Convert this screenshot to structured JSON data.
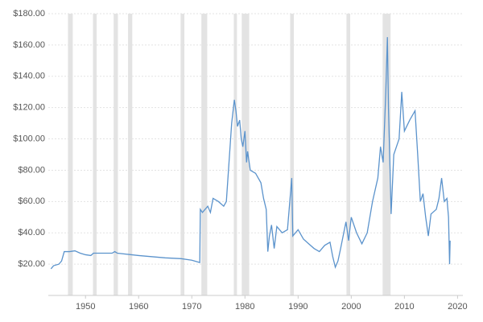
{
  "chart_data": {
    "type": "line",
    "x": [
      1943.5,
      1944,
      1945,
      1945.5,
      1946,
      1947,
      1948,
      1949,
      1950,
      1951,
      1951.5,
      1955,
      1955.5,
      1956,
      1960,
      1965,
      1968,
      1970,
      1971.5,
      1971.6,
      1972,
      1973,
      1973.5,
      1974,
      1975,
      1976,
      1976.5,
      1977,
      1977.5,
      1978,
      1978.3,
      1978.6,
      1979,
      1979.3,
      1979.6,
      1980,
      1980.3,
      1980.5,
      1981,
      1982,
      1983,
      1983.5,
      1984,
      1984.3,
      1984.6,
      1985,
      1985.5,
      1986,
      1987,
      1988,
      1988.8,
      1989,
      1990,
      1991,
      1992,
      1993,
      1994,
      1995,
      1996,
      1996.5,
      1997,
      1997.5,
      1998,
      1999,
      1999.5,
      2000,
      2001,
      2002,
      2003,
      2004,
      2005,
      2005.5,
      2006,
      2006.5,
      2006.8,
      2007,
      2007.3,
      2007.5,
      2008,
      2009,
      2009.5,
      2010,
      2011,
      2012,
      2012.5,
      2013,
      2013.5,
      2014,
      2014.5,
      2015,
      2016,
      2016.5,
      2017,
      2017.5,
      2018,
      2018.3,
      2018.5,
      2018.6
    ],
    "series": [
      {
        "color": "#5b93cc",
        "values": [
          17,
          19,
          20,
          22,
          28,
          28,
          28.5,
          27,
          26,
          25.5,
          27,
          27,
          28,
          27,
          25.5,
          24,
          23.5,
          22.5,
          21,
          55,
          53,
          57,
          53,
          62,
          60,
          57,
          60,
          85,
          110,
          125,
          118,
          108,
          112,
          100,
          95,
          105,
          85,
          92,
          80,
          78,
          72,
          62,
          55,
          28,
          38,
          45,
          30,
          44,
          40,
          42,
          75,
          38,
          42,
          36,
          33,
          30,
          28,
          32,
          34,
          25,
          18,
          22,
          30,
          47,
          35,
          50,
          40,
          33,
          40,
          60,
          75,
          95,
          85,
          130,
          165,
          120,
          80,
          52,
          90,
          100,
          130,
          105,
          112,
          118,
          90,
          60,
          65,
          50,
          38,
          52,
          55,
          62,
          75,
          60,
          62,
          50,
          20,
          35
        ]
      }
    ],
    "recessions": [
      [
        1946.7,
        1947.6
      ],
      [
        1951.4,
        1952.1
      ],
      [
        1955.3,
        1956.1
      ],
      [
        1958,
        1958.8
      ],
      [
        1967.9,
        1968.6
      ],
      [
        1971.8,
        1972.9
      ],
      [
        1977.9,
        1978.5
      ],
      [
        1979.4,
        1980.8
      ],
      [
        1988.5,
        1989.2
      ],
      [
        1999.1,
        1999.8
      ],
      [
        2005.9,
        2007.4
      ]
    ],
    "recession_color": "#e3e3e3",
    "xlim": [
      1943,
      2021
    ],
    "xticks": [
      1950,
      1960,
      1970,
      1980,
      1990,
      2000,
      2010,
      2020
    ],
    "ylim": [
      0,
      180
    ],
    "yticks": [
      {
        "value": 20,
        "label": "$20.00"
      },
      {
        "value": 40,
        "label": "$40.00"
      },
      {
        "value": 60,
        "label": "$60.00"
      },
      {
        "value": 80,
        "label": "$80.00"
      },
      {
        "value": 100,
        "label": "$100.00"
      },
      {
        "value": 120,
        "label": "$120.00"
      },
      {
        "value": 140,
        "label": "$140.00"
      },
      {
        "value": 160,
        "label": "$160.00"
      },
      {
        "value": 180,
        "label": "$180.00"
      }
    ],
    "grid": true
  }
}
